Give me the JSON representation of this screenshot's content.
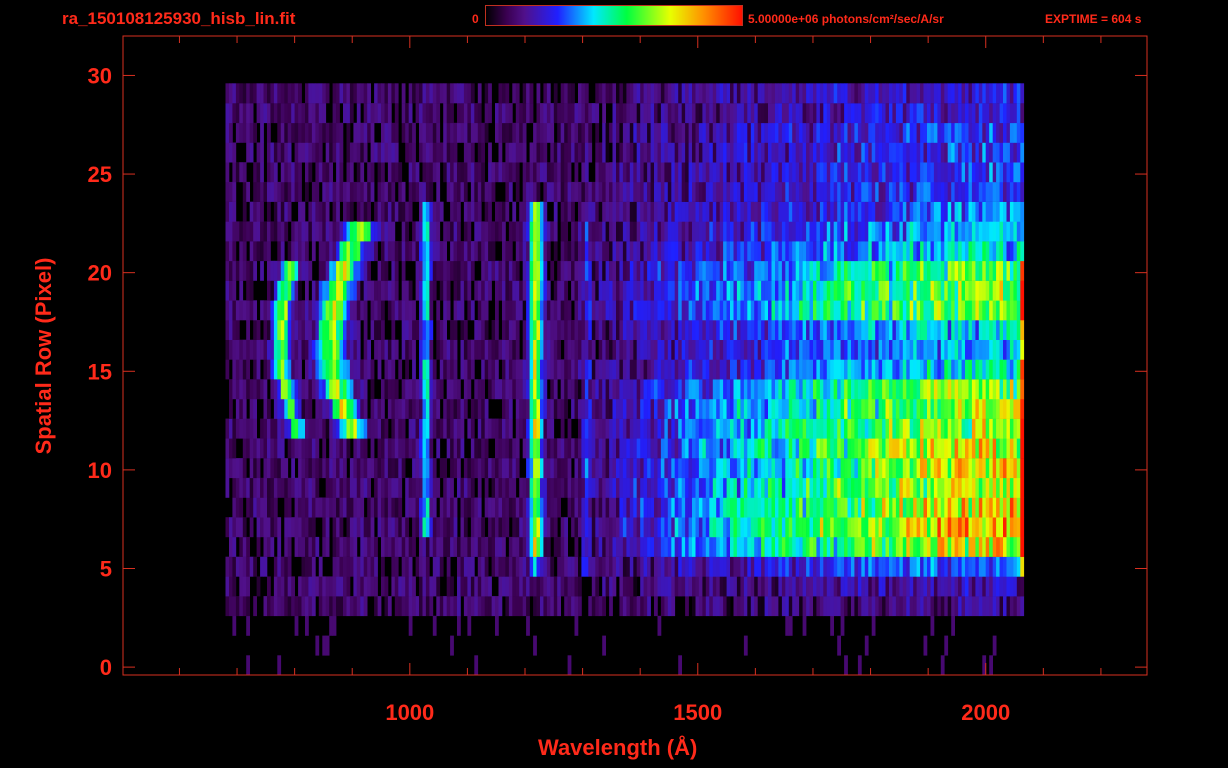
{
  "header": {
    "title": "ra_150108125930_hisb_lin.fit",
    "colorbar_min_label": "0",
    "colorbar_max_label": "5.00000e+06 photons/cm²/sec/A/sr",
    "exptime": "EXPTIME = 604 s"
  },
  "chart_data": {
    "type": "heatmap",
    "title": "ra_150108125930_hisb_lin.fit",
    "xlabel": "Wavelength (Å)",
    "ylabel": "Spatial Row (Pixel)",
    "xlim": [
      502,
      2280
    ],
    "ylim": [
      -0.4,
      32
    ],
    "x_major_ticks": [
      1000,
      1500,
      2000
    ],
    "x_tick_labels": [
      "1000",
      "1500",
      "2000"
    ],
    "x_minor_step": 100,
    "y_major_ticks": [
      0,
      5,
      10,
      15,
      20,
      25,
      30
    ],
    "y_tick_labels": [
      "0",
      "5",
      "10",
      "15",
      "20",
      "25",
      "30"
    ],
    "value_range": [
      0,
      5000000
    ],
    "value_unit": "photons/cm²/sec/A/sr",
    "colormap": [
      [
        0,
        "#000000"
      ],
      [
        0.08,
        "#3a0050"
      ],
      [
        0.15,
        "#50108a"
      ],
      [
        0.28,
        "#2020ff"
      ],
      [
        0.42,
        "#00e8ff"
      ],
      [
        0.55,
        "#00ff40"
      ],
      [
        0.72,
        "#e8ff00"
      ],
      [
        0.85,
        "#ff9000"
      ],
      [
        1,
        "#ff1000"
      ]
    ],
    "wavelength_coverage": [
      680,
      2066
    ],
    "wavelength_bin": 6,
    "rows": 30,
    "continuum_row_amplitude": [
      0,
      0,
      0,
      0.05,
      0.1,
      0.25,
      0.65,
      0.75,
      0.7,
      0.65,
      0.65,
      0.65,
      0.6,
      0.6,
      0.55,
      0.35,
      0.3,
      0.35,
      0.55,
      0.55,
      0.5,
      0.35,
      0.3,
      0.25,
      0.2,
      0.2,
      0.2,
      0.2,
      0.15,
      0.15
    ],
    "continuum_onset": 1300,
    "continuum_full": 1950,
    "emission_features": [
      {
        "name": "arc-1",
        "center": 773,
        "curvature": 1.35,
        "row_center": 16.5,
        "rows": [
          12,
          20
        ],
        "width": 14,
        "peak": 0.55
      },
      {
        "name": "arc-2",
        "center": 860,
        "curvature": 1.75,
        "row_center": 16.5,
        "rows": [
          12,
          22
        ],
        "width": 24,
        "peak": 0.58
      },
      {
        "name": "line-1025",
        "center": 1025,
        "rows": [
          7,
          23
        ],
        "width": 8,
        "peak": 0.35
      },
      {
        "name": "line-1216",
        "center": 1216,
        "rows": [
          6,
          23
        ],
        "width": 11,
        "peak": 0.6
      },
      {
        "name": "line-1216-faint",
        "center": 1216,
        "rows": [
          5,
          5
        ],
        "width": 10,
        "peak": 0.3
      },
      {
        "name": "line-1304",
        "center": 1304,
        "rows": [
          5,
          23
        ],
        "width": 8,
        "peak": 0.18
      },
      {
        "name": "edge-2062",
        "center": 2062,
        "rows": [
          5,
          20
        ],
        "width": 4,
        "peak": 0.55
      }
    ]
  }
}
